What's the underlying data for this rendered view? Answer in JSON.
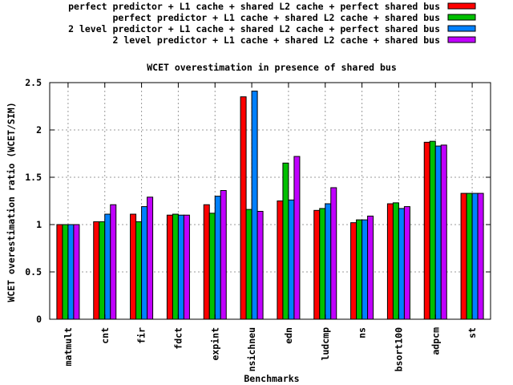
{
  "chart_data": {
    "type": "bar",
    "title": "WCET overestimation in presence of shared bus",
    "xlabel": "Benchmarks",
    "ylabel": "WCET overestimation ratio (WCET/SIM)",
    "ylim": [
      0,
      2.5
    ],
    "y_ticks": [
      "0",
      "0.5",
      "1",
      "1.5",
      "2",
      "2.5"
    ],
    "grid": true,
    "legend_position": "top-right",
    "categories": [
      "matmult",
      "cnt",
      "fir",
      "fdct",
      "expint",
      "nsichneu",
      "edn",
      "ludcmp",
      "ns",
      "bsort100",
      "adpcm",
      "st"
    ],
    "series": [
      {
        "name": "perfect predictor + L1 cache + shared L2 cache + perfect shared bus",
        "color": "#ff0000",
        "values": [
          1.0,
          1.03,
          1.11,
          1.1,
          1.21,
          2.35,
          1.25,
          1.15,
          1.02,
          1.22,
          1.87,
          1.33
        ]
      },
      {
        "name": "perfect predictor + L1 cache + shared L2 cache + shared bus",
        "color": "#00c000",
        "values": [
          1.0,
          1.03,
          1.03,
          1.11,
          1.12,
          1.16,
          1.65,
          1.17,
          1.05,
          1.23,
          1.88,
          1.33
        ]
      },
      {
        "name": "2 level predictor + L1 cache + shared L2 cache + perfect shared bus",
        "color": "#0080ff",
        "values": [
          1.0,
          1.11,
          1.19,
          1.1,
          1.3,
          2.41,
          1.26,
          1.22,
          1.05,
          1.17,
          1.83,
          1.33
        ]
      },
      {
        "name": "2 level predictor + L1 cache + shared L2 cache + shared bus",
        "color": "#c000ff",
        "values": [
          1.0,
          1.21,
          1.29,
          1.1,
          1.36,
          1.14,
          1.72,
          1.39,
          1.09,
          1.19,
          1.84,
          1.33
        ]
      }
    ]
  }
}
